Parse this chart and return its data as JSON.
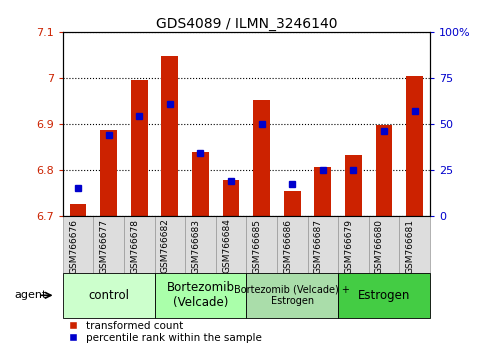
{
  "title": "GDS4089 / ILMN_3246140",
  "samples": [
    "GSM766676",
    "GSM766677",
    "GSM766678",
    "GSM766682",
    "GSM766683",
    "GSM766684",
    "GSM766685",
    "GSM766686",
    "GSM766687",
    "GSM766679",
    "GSM766680",
    "GSM766681"
  ],
  "red_values": [
    6.726,
    6.886,
    6.996,
    7.047,
    6.838,
    6.778,
    6.951,
    6.754,
    6.805,
    6.832,
    6.898,
    7.003
  ],
  "blue_values": [
    15,
    44,
    54,
    61,
    34,
    19,
    50,
    17,
    25,
    25,
    46,
    57
  ],
  "ymin": 6.7,
  "ymax": 7.1,
  "y_ticks": [
    6.7,
    6.8,
    6.9,
    7.0,
    7.1
  ],
  "y_ticklabels": [
    "6.7",
    "6.8",
    "6.9",
    "7",
    "7.1"
  ],
  "y2_ticks": [
    0,
    25,
    50,
    75,
    100
  ],
  "y2_labels": [
    "0",
    "25",
    "50",
    "75",
    "100%"
  ],
  "groups": [
    {
      "label": "control",
      "start": 0,
      "end": 3,
      "color": "#ccffcc"
    },
    {
      "label": "Bortezomib\n(Velcade)",
      "start": 3,
      "end": 6,
      "color": "#aaffaa"
    },
    {
      "label": "Bortezomib (Velcade) +\nEstrogen",
      "start": 6,
      "end": 9,
      "color": "#aaddaa"
    },
    {
      "label": "Estrogen",
      "start": 9,
      "end": 12,
      "color": "#44cc44"
    }
  ],
  "bar_color": "#cc2200",
  "blue_color": "#0000cc",
  "legend_red": "transformed count",
  "legend_blue": "percentile rank within the sample",
  "agent_label": "agent",
  "bar_width": 0.55,
  "blue_marker_size": 5,
  "xtick_bg": "#dddddd",
  "xtick_border": "#999999"
}
